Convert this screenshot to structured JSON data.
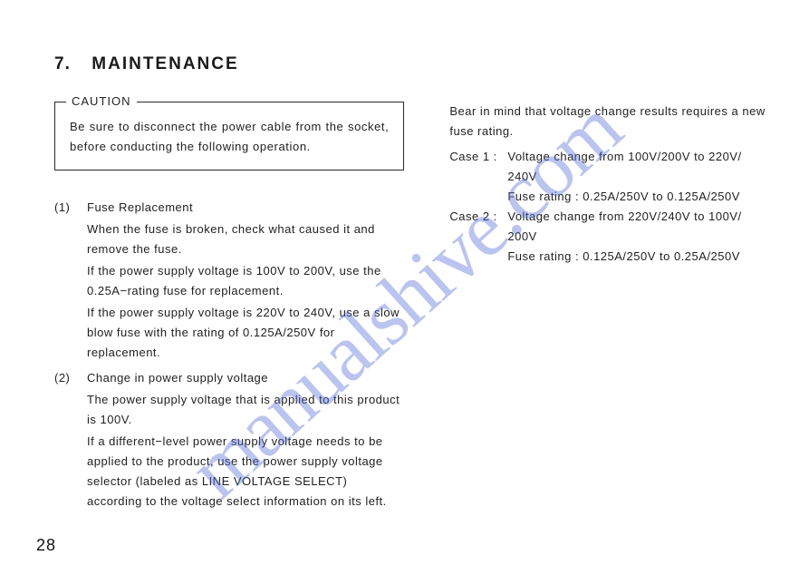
{
  "watermark": "manualshive.com",
  "heading": {
    "num": "7.",
    "title": "MAINTENANCE"
  },
  "caution": {
    "label": "CAUTION",
    "text": "Be sure to disconnect the power cable from the socket, before conducting the following operation."
  },
  "items": [
    {
      "num": "(1)",
      "title": "Fuse Replacement",
      "paras": [
        "When the fuse is broken, check what caused it and remove the fuse.",
        "If the power supply voltage is 100V to 200V, use the 0.25A−rating fuse for replacement.",
        "If the power supply voltage is 220V to 240V, use a slow blow fuse with the rating of 0.125A/250V for replacement."
      ]
    },
    {
      "num": "(2)",
      "title": "Change in power supply voltage",
      "paras": [
        "The power supply voltage that is applied to this product is 100V.",
        "If a different−level power supply voltage needs to be applied to the product, use the power supply voltage selector (labeled as LINE VOLTAGE SELECT) according to the voltage select information on its left."
      ]
    }
  ],
  "right": {
    "intro": "Bear in mind that voltage change results requires a new fuse rating.",
    "cases": [
      {
        "label": "Case 1 :",
        "line1": "Voltage change from 100V/200V to 220V/ 240V",
        "line2": "Fuse rating : 0.25A/250V to 0.125A/250V"
      },
      {
        "label": "Case 2 :",
        "line1": "Voltage change from 220V/240V to 100V/ 200V",
        "line2": "Fuse rating : 0.125A/250V to 0.25A/250V"
      }
    ]
  },
  "page_number": "28"
}
